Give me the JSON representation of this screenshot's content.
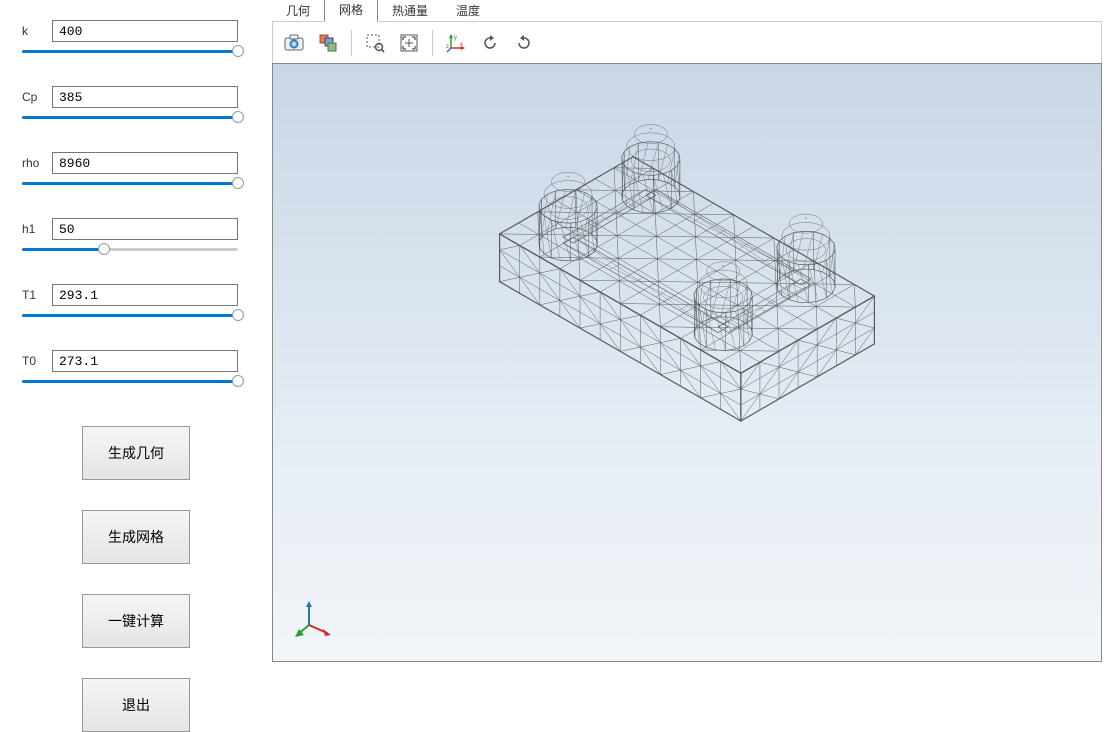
{
  "params": [
    {
      "key": "k",
      "label": "k",
      "value": "400",
      "slider_pct": 100
    },
    {
      "key": "cp",
      "label": "Cp",
      "value": "385",
      "slider_pct": 100
    },
    {
      "key": "rho",
      "label": "rho",
      "value": "8960",
      "slider_pct": 100
    },
    {
      "key": "h1",
      "label": "h1",
      "value": "50",
      "slider_pct": 38
    },
    {
      "key": "t1",
      "label": "T1",
      "value": "293.1",
      "slider_pct": 100
    },
    {
      "key": "t0",
      "label": "T0",
      "value": "273.1",
      "slider_pct": 100
    }
  ],
  "buttons": {
    "gen_geom": "生成几何",
    "gen_mesh": "生成网格",
    "one_click_calc": "一键计算",
    "exit": "退出"
  },
  "tabs": {
    "geometry": "几何",
    "mesh": "网格",
    "heat_flux": "热通量",
    "temperature": "温度",
    "active": "mesh"
  },
  "toolbar": {
    "camera": "camera-icon",
    "layers": "layers-icon",
    "zoom_window": "zoom-window-icon",
    "zoom_extents": "zoom-extents-icon",
    "axes": "axes-icon",
    "rotate_ccw": "rotate-ccw-icon",
    "rotate_cw": "rotate-cw-icon"
  },
  "viewport": {
    "background_top": "#c8d6e6",
    "background_bottom": "#f2f5f9",
    "mesh_line_color": "#5a5a5a",
    "mesh_line_width": 0.5,
    "axis_colors": {
      "x": "#d62728",
      "y": "#2ca02c",
      "z": "#1f77b4"
    }
  }
}
